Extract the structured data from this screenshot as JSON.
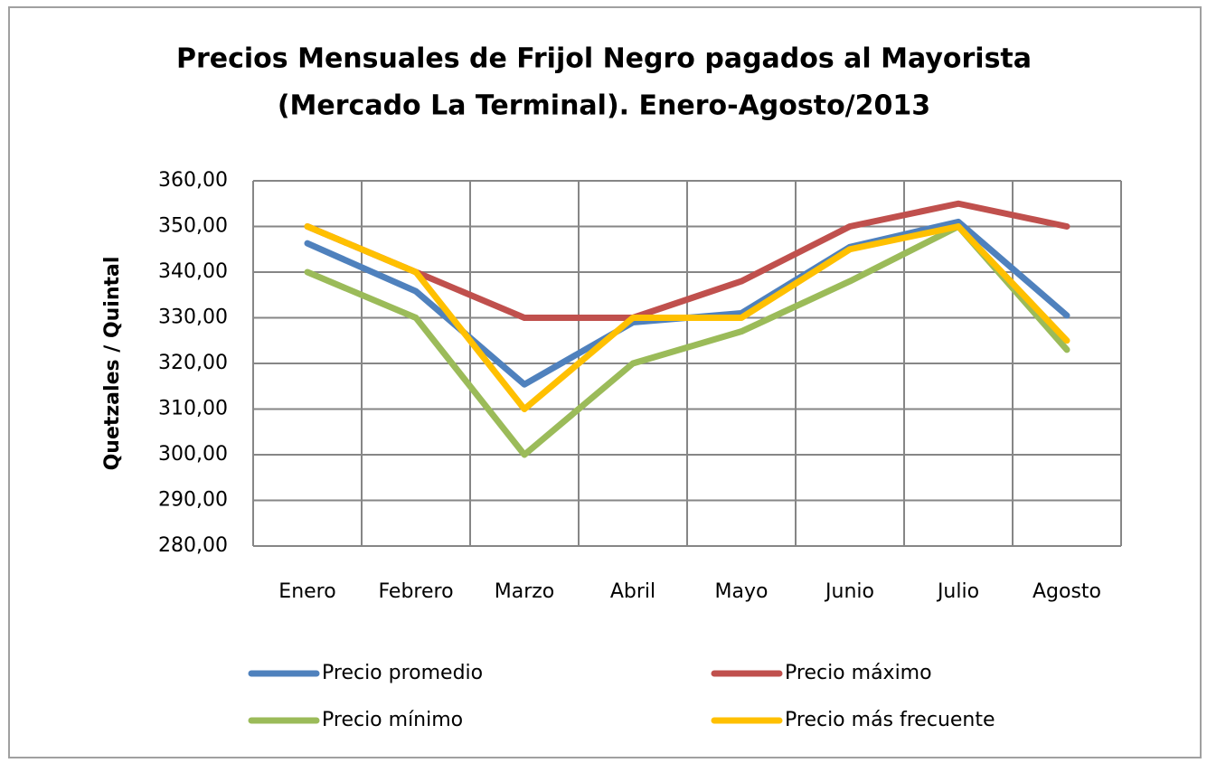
{
  "chart_data": {
    "type": "line",
    "title": [
      "Precios Mensuales de Frijol Negro pagados al Mayorista",
      "(Mercado La Terminal). Enero-Agosto/2013"
    ],
    "y_label": "Quetzales  / Quintal",
    "categories": [
      "Enero",
      "Febrero",
      "Marzo",
      "Abril",
      "Mayo",
      "Junio",
      "Julio",
      "Agosto"
    ],
    "series": [
      {
        "name": "Precio promedio",
        "color": "#4f81bd",
        "values": [
          346.3,
          335.8,
          315.4,
          329,
          331,
          345.5,
          351,
          330.5
        ]
      },
      {
        "name": "Precio máximo",
        "color": "#c0504d",
        "values": [
          350,
          340,
          330,
          330,
          338,
          350,
          355,
          350
        ]
      },
      {
        "name": "Precio mínimo",
        "color": "#9bbb59",
        "values": [
          340,
          330,
          300,
          320,
          327,
          338,
          350,
          323
        ]
      },
      {
        "name": "Precio más frecuente",
        "color": "#ffc000",
        "values": [
          350,
          340,
          310,
          330,
          330,
          345,
          350,
          325
        ]
      }
    ],
    "ylim": [
      280,
      360
    ],
    "yticks": [
      {
        "value": 280,
        "label": "280,00"
      },
      {
        "value": 290,
        "label": "290,00"
      },
      {
        "value": 300,
        "label": "300,00"
      },
      {
        "value": 310,
        "label": "310,00"
      },
      {
        "value": 320,
        "label": "320,00"
      },
      {
        "value": 330,
        "label": "330,00"
      },
      {
        "value": 340,
        "label": "340,00"
      },
      {
        "value": 350,
        "label": "350,00"
      },
      {
        "value": 360,
        "label": "360,00"
      }
    ],
    "grid": true,
    "legend": "bottom"
  }
}
